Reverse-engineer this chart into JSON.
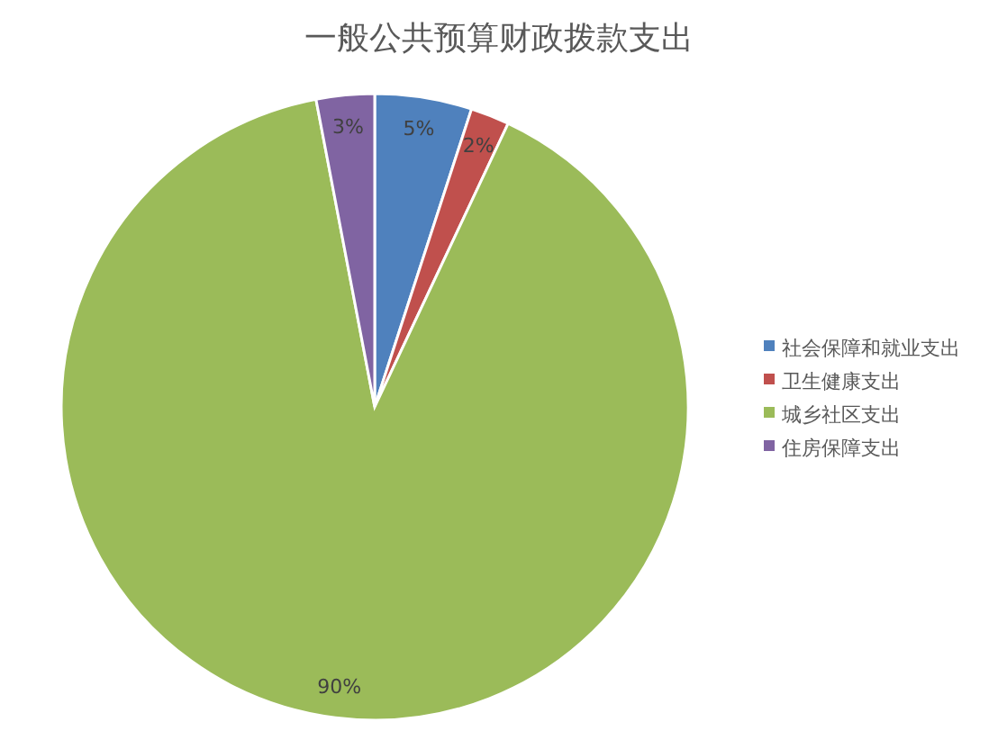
{
  "chart_data": {
    "type": "pie",
    "title": "一般公共预算财政拨款支出",
    "categories": [
      "社会保障和就业支出",
      "卫生健康支出",
      "城乡社区支出",
      "住房保障支出"
    ],
    "values": [
      5,
      2,
      90,
      3
    ],
    "colors": [
      "#4f81bd",
      "#c0504d",
      "#9bbb59",
      "#8064a2"
    ],
    "value_labels": [
      "5%",
      "2%",
      "90%",
      "3%"
    ],
    "legend": "right"
  }
}
